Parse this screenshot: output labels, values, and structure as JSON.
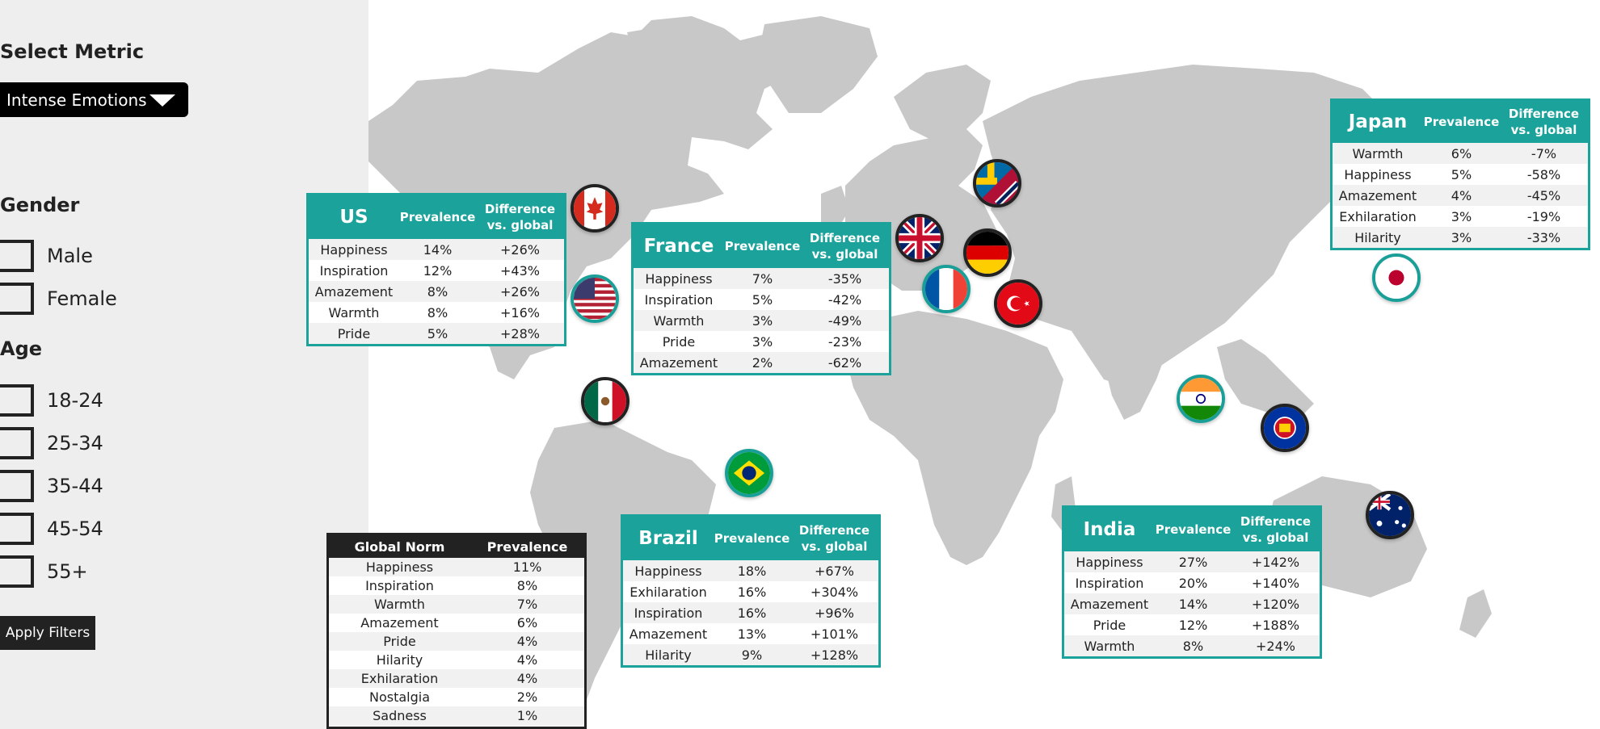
{
  "sidebar": {
    "metric_heading": "Select Metric",
    "metric_selected": "Intense Emotions",
    "gender_heading": "Gender",
    "gender_options": [
      "Male",
      "Female"
    ],
    "age_heading": "Age",
    "age_options": [
      "18-24",
      "25-34",
      "35-44",
      "45-54",
      "55+"
    ],
    "apply_label": "Apply Filters"
  },
  "colors": {
    "accent": "#1aa29b",
    "land": "#c8c8c8",
    "dark": "#222222"
  },
  "column_headers": {
    "prevalence": "Prevalence",
    "difference": "Difference vs. global"
  },
  "countries": {
    "us": {
      "name": "US",
      "rows": [
        {
          "label": "Happiness",
          "prevalence": "14%",
          "diff": "+26%"
        },
        {
          "label": "Inspiration",
          "prevalence": "12%",
          "diff": "+43%"
        },
        {
          "label": "Amazement",
          "prevalence": "8%",
          "diff": "+26%"
        },
        {
          "label": "Warmth",
          "prevalence": "8%",
          "diff": "+16%"
        },
        {
          "label": "Pride",
          "prevalence": "5%",
          "diff": "+28%"
        }
      ]
    },
    "france": {
      "name": "France",
      "rows": [
        {
          "label": "Happiness",
          "prevalence": "7%",
          "diff": "-35%"
        },
        {
          "label": "Inspiration",
          "prevalence": "5%",
          "diff": "-42%"
        },
        {
          "label": "Warmth",
          "prevalence": "3%",
          "diff": "-49%"
        },
        {
          "label": "Pride",
          "prevalence": "3%",
          "diff": "-23%"
        },
        {
          "label": "Amazement",
          "prevalence": "2%",
          "diff": "-62%"
        }
      ]
    },
    "japan": {
      "name": "Japan",
      "rows": [
        {
          "label": "Warmth",
          "prevalence": "6%",
          "diff": "-7%"
        },
        {
          "label": "Happiness",
          "prevalence": "5%",
          "diff": "-58%"
        },
        {
          "label": "Amazement",
          "prevalence": "4%",
          "diff": "-45%"
        },
        {
          "label": "Exhilaration",
          "prevalence": "3%",
          "diff": "-19%"
        },
        {
          "label": "Hilarity",
          "prevalence": "3%",
          "diff": "-33%"
        }
      ]
    },
    "brazil": {
      "name": "Brazil",
      "rows": [
        {
          "label": "Happiness",
          "prevalence": "18%",
          "diff": "+67%"
        },
        {
          "label": "Exhilaration",
          "prevalence": "16%",
          "diff": "+304%"
        },
        {
          "label": "Inspiration",
          "prevalence": "16%",
          "diff": "+96%"
        },
        {
          "label": "Amazement",
          "prevalence": "13%",
          "diff": "+101%"
        },
        {
          "label": "Hilarity",
          "prevalence": "9%",
          "diff": "+128%"
        }
      ]
    },
    "india": {
      "name": "India",
      "rows": [
        {
          "label": "Happiness",
          "prevalence": "27%",
          "diff": "+142%"
        },
        {
          "label": "Inspiration",
          "prevalence": "20%",
          "diff": "+140%"
        },
        {
          "label": "Amazement",
          "prevalence": "14%",
          "diff": "+120%"
        },
        {
          "label": "Pride",
          "prevalence": "12%",
          "diff": "+188%"
        },
        {
          "label": "Warmth",
          "prevalence": "8%",
          "diff": "+24%"
        }
      ]
    }
  },
  "global_norm": {
    "title": "Global Norm",
    "col": "Prevalence",
    "rows": [
      {
        "label": "Happiness",
        "prevalence": "11%"
      },
      {
        "label": "Inspiration",
        "prevalence": "8%"
      },
      {
        "label": "Warmth",
        "prevalence": "7%"
      },
      {
        "label": "Amazement",
        "prevalence": "6%"
      },
      {
        "label": "Pride",
        "prevalence": "4%"
      },
      {
        "label": "Hilarity",
        "prevalence": "4%"
      },
      {
        "label": "Exhilaration",
        "prevalence": "4%"
      },
      {
        "label": "Nostalgia",
        "prevalence": "2%"
      },
      {
        "label": "Sadness",
        "prevalence": "1%"
      }
    ]
  },
  "flags": [
    "canada-flag-icon",
    "usa-flag-icon",
    "mexico-flag-icon",
    "brazil-flag-icon",
    "uk-flag-icon",
    "france-flag-icon",
    "sweden-norway-flag-icon",
    "germany-flag-icon",
    "turkey-flag-icon",
    "india-flag-icon",
    "asean-flag-icon",
    "japan-flag-icon",
    "australia-flag-icon"
  ]
}
